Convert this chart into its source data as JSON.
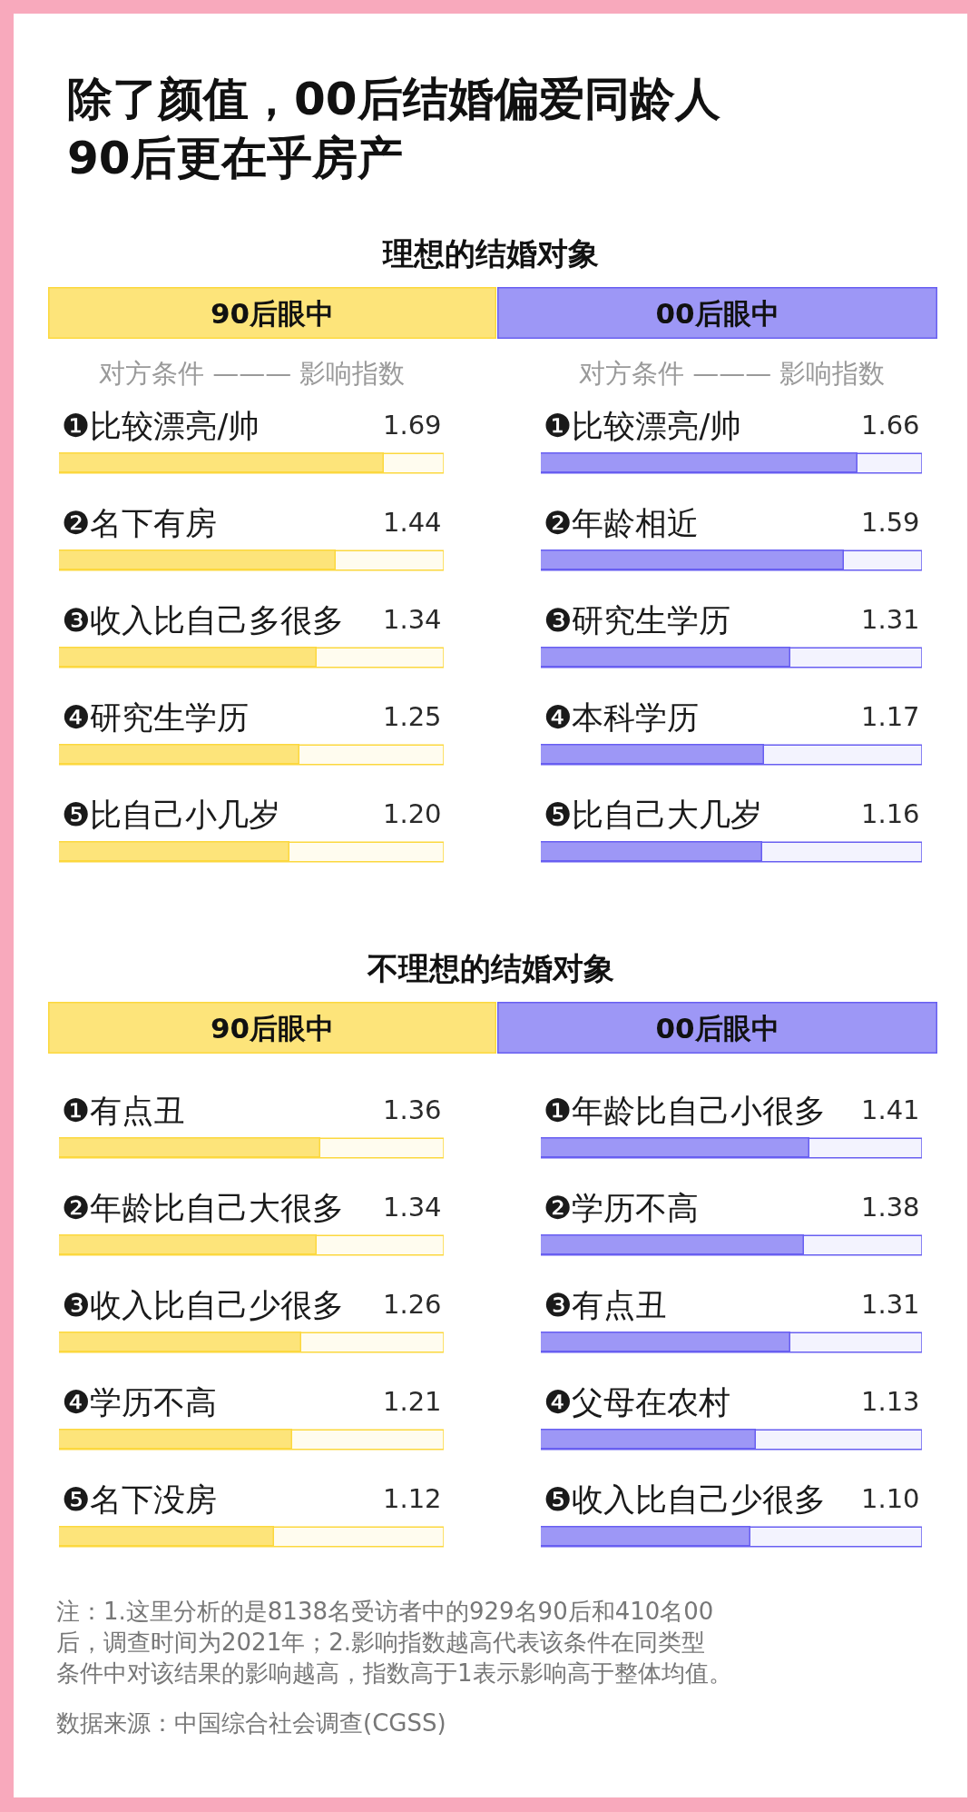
{
  "chart_data": [
    {
      "type": "other",
      "title": "除了颜值，00后结婚偏爱同龄人\n90后更在乎房产"
    },
    {
      "type": "bar",
      "orientation": "horizontal",
      "title": "理想的结婚对象",
      "subtitle": "90后眼中",
      "annotations": [
        "对方条件 ——— 影响指数"
      ],
      "categories": [
        "❶比较漂亮/帅",
        "❷名下有房",
        "❸收入比自己多很多",
        "❹研究生学历",
        "❺比自己小几岁"
      ],
      "values": [
        1.69,
        1.44,
        1.34,
        1.25,
        1.2
      ],
      "value_labels": [
        "1.69",
        "1.44",
        "1.34",
        "1.25",
        "1.20"
      ],
      "color": "#fde47a",
      "xlim": [
        0,
        2
      ],
      "tick_labels": "y"
    },
    {
      "type": "bar",
      "orientation": "horizontal",
      "subtitle": "00后眼中",
      "annotations": [
        "对方条件 ——— 影响指数"
      ],
      "categories": [
        "❶比较漂亮/帅",
        "❷年龄相近",
        "❸研究生学历",
        "❹本科学历",
        "❺比自己大几岁"
      ],
      "values": [
        1.66,
        1.59,
        1.31,
        1.17,
        1.16
      ],
      "value_labels": [
        "1.66",
        "1.59",
        "1.31",
        "1.17",
        "1.16"
      ],
      "color": "#9d97f6",
      "xlim": [
        0,
        2
      ],
      "tick_labels": "y"
    },
    {
      "type": "bar",
      "orientation": "horizontal",
      "title": "不理想的结婚对象",
      "subtitle": "90后眼中",
      "categories": [
        "❶有点丑",
        "❷年龄比自己大很多",
        "❸收入比自己少很多",
        "❹学历不高",
        "❺名下没房"
      ],
      "values": [
        1.36,
        1.34,
        1.26,
        1.21,
        1.12
      ],
      "value_labels": [
        "1.36",
        "1.34",
        "1.26",
        "1.21",
        "1.12"
      ],
      "color": "#fde47a",
      "xlim": [
        0,
        2
      ],
      "tick_labels": "y"
    },
    {
      "type": "bar",
      "orientation": "horizontal",
      "subtitle": "00后眼中",
      "categories": [
        "❶年龄比自己小很多",
        "❷学历不高",
        "❸有点丑",
        "❹父母在农村",
        "❺收入比自己少很多"
      ],
      "values": [
        1.41,
        1.38,
        1.31,
        1.13,
        1.1
      ],
      "value_labels": [
        "1.41",
        "1.38",
        "1.31",
        "1.13",
        "1.10"
      ],
      "color": "#9d97f6",
      "xlim": [
        0,
        2
      ],
      "tick_labels": "y"
    },
    {
      "type": "other",
      "annotations": [
        "注：1.这里分析的是8138名受访者中的929名90后和410名00后，调查时间为2021年；2.影响指数越高代表该条件在同类型条件中对该结果的影响越高，指数高于1表示影响高于整体均值。",
        "数据来源：中国综合社会调查(CGSS)"
      ]
    }
  ]
}
